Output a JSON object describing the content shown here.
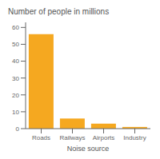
{
  "chart_data": {
    "type": "bar",
    "categories": [
      "Roads",
      "Railways",
      "Airports",
      "Industry"
    ],
    "values": [
      56,
      6,
      3,
      1
    ],
    "color": "#F5A820",
    "xlabel": "Noise source",
    "ylabel": "Number of people in millions",
    "ylim": [
      0,
      63
    ],
    "yticks": [
      0,
      10,
      20,
      30,
      40,
      50,
      60
    ],
    "grid": false
  }
}
